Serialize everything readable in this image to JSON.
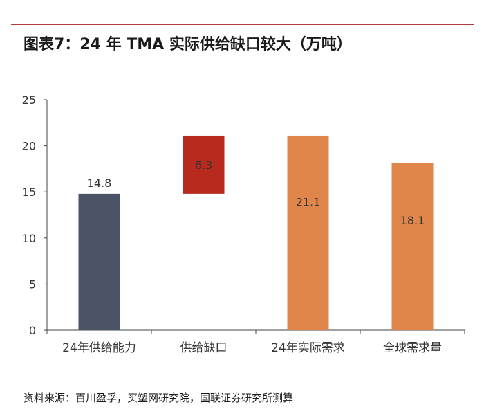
{
  "header": {
    "title": "图表7：24 年 TMA 实际供给缺口较大（万吨）"
  },
  "footer": {
    "source": "资料来源：百川盈孚，买塑网研究院，国联证券研究所测算"
  },
  "chart_data": {
    "type": "bar",
    "subtype": "waterfall",
    "categories": [
      "24年供给能力",
      "供给缺口",
      "24年实际需求",
      "全球需求量"
    ],
    "values": [
      14.8,
      6.3,
      21.1,
      18.1
    ],
    "bases": [
      0,
      14.8,
      0,
      0
    ],
    "data_labels": [
      "14.8",
      "6.3",
      "21.1",
      "18.1"
    ],
    "colors": [
      "#4a5466",
      "#b8291e",
      "#e0864a",
      "#e0864a"
    ],
    "ylim": [
      0,
      25
    ],
    "yticks": [
      0,
      5,
      10,
      15,
      20,
      25
    ],
    "grid": false,
    "legend": false,
    "title": "",
    "xlabel": "",
    "ylabel": ""
  }
}
